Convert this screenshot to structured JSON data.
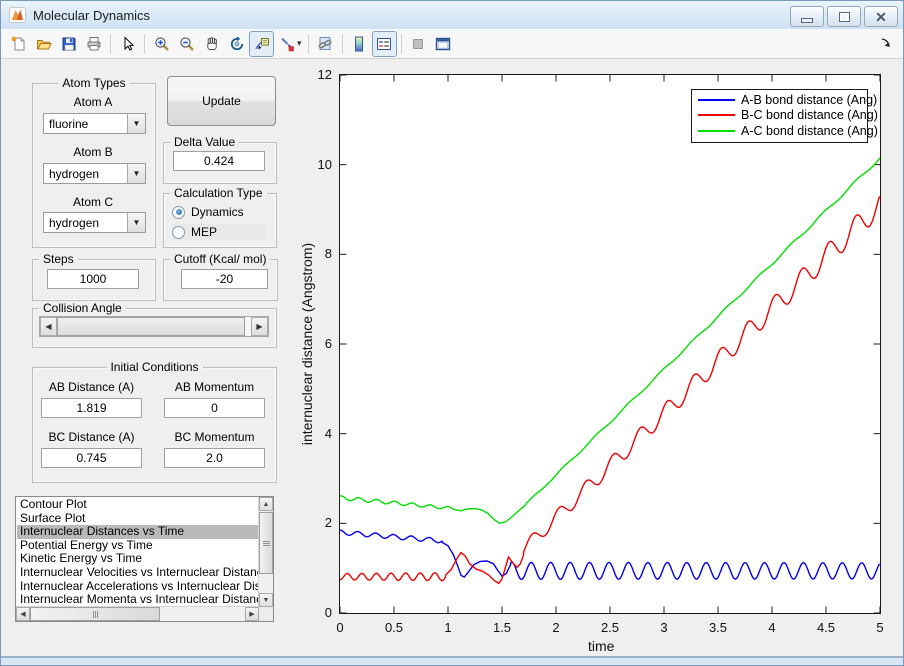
{
  "window": {
    "title": "Molecular Dynamics",
    "buttons": {
      "minimize": "minimize",
      "restore": "restore",
      "close": "close"
    }
  },
  "toolbar": {
    "icons": [
      "new-file",
      "open-file",
      "save",
      "print",
      "edit-pointer",
      "zoom-in",
      "zoom-out",
      "pan",
      "rotate-3d",
      "data-cursor",
      "brush",
      "link-plots",
      "insert-colorbar",
      "insert-legend",
      "hide-plot-tools",
      "dock-figure"
    ],
    "pressed": [
      "data-cursor",
      "insert-legend"
    ]
  },
  "controls": {
    "atom_types": {
      "title": "Atom Types",
      "fields": [
        {
          "label": "Atom A",
          "value": "fluorine"
        },
        {
          "label": "Atom B",
          "value": "hydrogen"
        },
        {
          "label": "Atom C",
          "value": "hydrogen"
        }
      ]
    },
    "update_label": "Update",
    "delta": {
      "title": "Delta Value",
      "value": "0.424"
    },
    "calculation": {
      "title": "Calculation Type",
      "options": [
        {
          "label": "Dynamics",
          "selected": true
        },
        {
          "label": "MEP",
          "selected": false
        }
      ]
    },
    "steps": {
      "title": "Steps",
      "value": "1000"
    },
    "cutoff": {
      "title": "Cutoff (Kcal/ mol)",
      "value": "-20"
    },
    "collision": {
      "title": "Collision Angle"
    },
    "initial": {
      "title": "Initial Conditions",
      "fields": [
        {
          "label": "AB Distance (A)",
          "value": "1.819"
        },
        {
          "label": "AB Momentum",
          "value": "0"
        },
        {
          "label": "BC Distance (A)",
          "value": "0.745"
        },
        {
          "label": "BC Momentum",
          "value": "2.0"
        }
      ]
    },
    "plot_list": {
      "items": [
        "Contour Plot",
        "Surface Plot",
        "Internuclear Distances vs Time",
        "Potential Energy vs Time",
        "Kinetic Energy vs Time",
        "Internuclear Velocities vs Internuclear Distance",
        "Internuclear Accelerations vs Internuclear Distance",
        "Internuclear Momenta vs Internuclear Distance"
      ],
      "selected_index": 2
    }
  },
  "chart_data": {
    "type": "line",
    "title": "",
    "xlabel": "time",
    "ylabel": "internuclear distance (Angstrom)",
    "xlim": [
      0,
      5
    ],
    "ylim": [
      0,
      12
    ],
    "xticks": [
      0,
      0.5,
      1,
      1.5,
      2,
      2.5,
      3,
      3.5,
      4,
      4.5,
      5
    ],
    "xtick_labels": [
      "0",
      "0.5",
      "1",
      "1.5",
      "2",
      "2.5",
      "3",
      "3.5",
      "4",
      "4.5",
      "5"
    ],
    "yticks": [
      0,
      2,
      4,
      6,
      8,
      10,
      12
    ],
    "ytick_labels": [
      "0",
      "2",
      "4",
      "6",
      "8",
      "10",
      "12"
    ],
    "grid": false,
    "legend": {
      "position": "top-right"
    },
    "series": [
      {
        "name": "A-B bond distance (Ang)",
        "color": "#0000EE",
        "summary": "starts ~1.82 with small ripples, drops near t=1.1, then steady oscillation between ~0.76 and ~1.13 until t=5",
        "segments": [
          {
            "osc": {
              "t0": 0,
              "t1": 0.95,
              "dt": 0.008,
              "mean0": 1.8,
              "mean1": 1.61,
              "amp0": 0.05,
              "amp1": 0.05,
              "period": 0.165,
              "phase": 1.57
            }
          },
          {
            "pts": [
              [
                0.95,
                1.57
              ],
              [
                1.0,
                1.5
              ],
              [
                1.05,
                1.3
              ],
              [
                1.09,
                1.05
              ],
              [
                1.12,
                0.84
              ],
              [
                1.15,
                0.8
              ],
              [
                1.19,
                0.92
              ],
              [
                1.24,
                1.08
              ],
              [
                1.3,
                1.15
              ],
              [
                1.36,
                1.16
              ],
              [
                1.42,
                1.1
              ],
              [
                1.46,
                0.95
              ],
              [
                1.5,
                0.82
              ],
              [
                1.54,
                0.88
              ],
              [
                1.58,
                1.08
              ]
            ]
          },
          {
            "osc": {
              "t0": 1.58,
              "t1": 5.0,
              "dt": 0.008,
              "mean0": 0.94,
              "mean1": 0.94,
              "amp0": 0.19,
              "amp1": 0.18,
              "period": 0.18,
              "phase": 1.2
            }
          }
        ]
      },
      {
        "name": "B-C bond distance (Ang)",
        "color": "#EE0000",
        "summary": "oscillates ~0.74-0.9 until t=1, spike to 1.35 at t=1.12, dip to 0.66 at t=1.47, then rises with oscillations to ~9.3 at t=5",
        "segments": [
          {
            "osc": {
              "t0": 0,
              "t1": 0.98,
              "dt": 0.008,
              "mean0": 0.81,
              "mean1": 0.81,
              "amp0": 0.07,
              "amp1": 0.09,
              "period": 0.135,
              "phase": -1.57
            }
          },
          {
            "pts": [
              [
                0.98,
                0.85
              ],
              [
                1.03,
                0.97
              ],
              [
                1.08,
                1.2
              ],
              [
                1.12,
                1.35
              ],
              [
                1.16,
                1.27
              ],
              [
                1.2,
                1.1
              ],
              [
                1.26,
                0.98
              ],
              [
                1.32,
                0.93
              ],
              [
                1.38,
                0.84
              ],
              [
                1.43,
                0.72
              ],
              [
                1.47,
                0.66
              ],
              [
                1.5,
                0.76
              ],
              [
                1.53,
                1.0
              ],
              [
                1.56,
                1.25
              ],
              [
                1.6,
                1.12
              ],
              [
                1.64,
                1.02
              ],
              [
                1.67,
                1.1
              ],
              [
                1.7,
                1.3
              ]
            ]
          },
          {
            "osc": {
              "t0": 1.7,
              "t1": 5.0,
              "dt": 0.008,
              "mean0": 1.42,
              "mean1": 9.12,
              "amp0": 0.15,
              "amp1": 0.27,
              "period": 0.25,
              "phase": -0.4
            }
          }
        ]
      },
      {
        "name": "A-C bond distance (Ang)",
        "color": "#00DD00",
        "summary": "starts ~2.6 with gentle ripples, dips to ~2.0 at t=1.5, then rises nearly linearly to ~10.15 at t=5",
        "segments": [
          {
            "osc": {
              "t0": 0,
              "t1": 1.05,
              "dt": 0.008,
              "mean0": 2.57,
              "mean1": 2.33,
              "amp0": 0.045,
              "amp1": 0.03,
              "period": 0.165,
              "phase": 1.2
            }
          },
          {
            "pts": [
              [
                1.05,
                2.31
              ],
              [
                1.12,
                2.28
              ],
              [
                1.18,
                2.32
              ],
              [
                1.25,
                2.33
              ],
              [
                1.31,
                2.3
              ],
              [
                1.37,
                2.22
              ],
              [
                1.43,
                2.08
              ],
              [
                1.48,
                2.0
              ],
              [
                1.53,
                2.03
              ],
              [
                1.58,
                2.12
              ],
              [
                1.64,
                2.25
              ],
              [
                1.7,
                2.37
              ]
            ]
          },
          {
            "osc": {
              "t0": 1.7,
              "t1": 5.0,
              "dt": 0.01,
              "mean0": 2.37,
              "mean1": 10.15,
              "amp0": 0.02,
              "amp1": 0.03,
              "period": 0.3,
              "phase": 0
            }
          }
        ]
      }
    ]
  }
}
